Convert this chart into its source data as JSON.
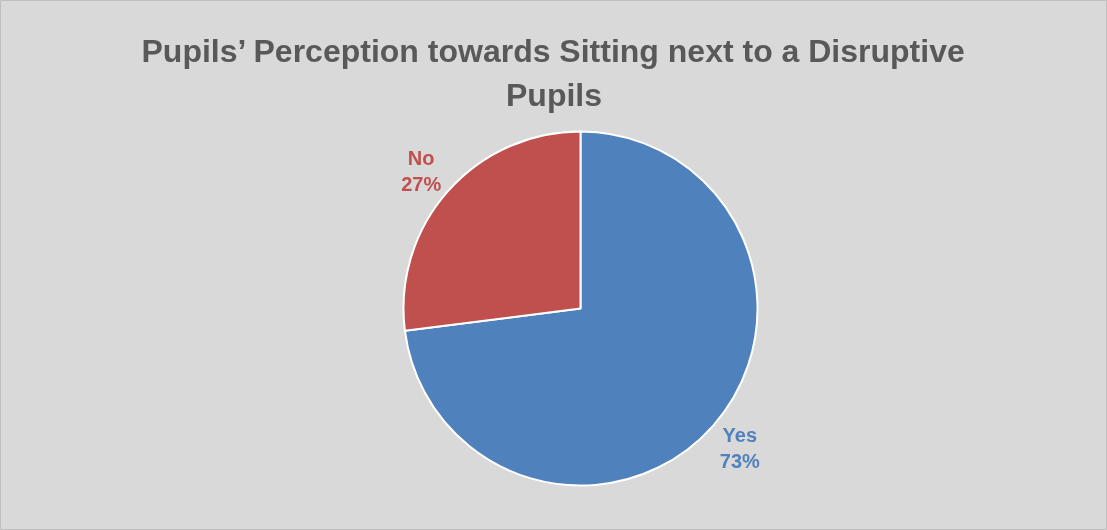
{
  "chart_data": {
    "type": "pie",
    "title": "Pupils’ Perception towards Sitting next to a Disruptive Pupils",
    "categories": [
      "Yes",
      "No"
    ],
    "values": [
      73,
      27
    ],
    "value_labels": [
      "73%",
      "27%"
    ],
    "colors": [
      "#4f81bd",
      "#c0504d"
    ]
  }
}
